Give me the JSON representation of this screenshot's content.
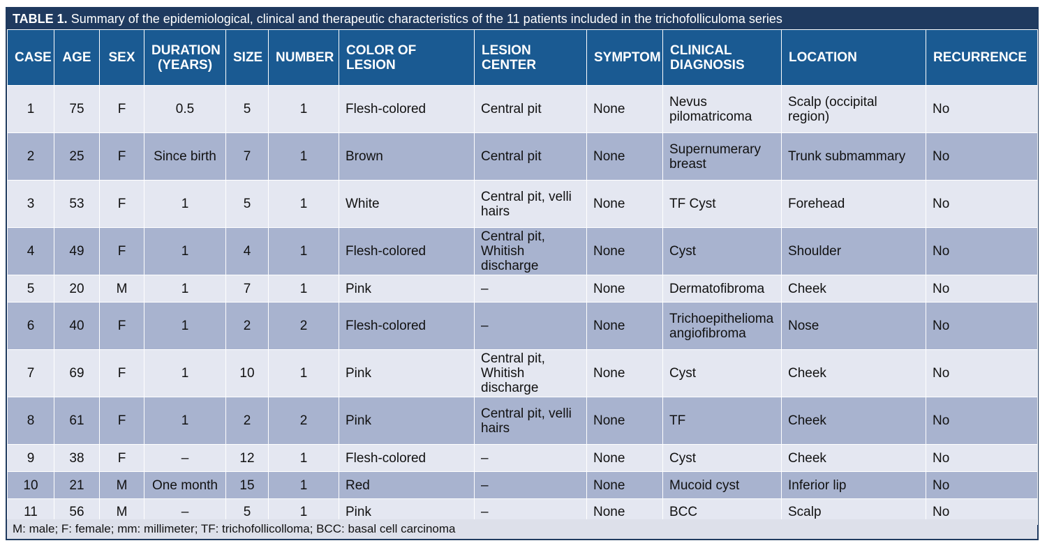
{
  "table": {
    "label": "TABLE 1.",
    "caption": "Summary of the epidemiological, clinical and therapeutic characteristics of the 11 patients included in the trichofolliculoma series",
    "headers": [
      "CASE",
      "AGE",
      "SEX",
      "DURATION (YEARS)",
      "SIZE",
      "NUMBER",
      "COLOR OF LESION",
      "LESION CENTER",
      "SYMPTOM",
      "CLINICAL DIAGNOSIS",
      "LOCATION",
      "RECURRENCE"
    ],
    "rows": [
      [
        "1",
        "75",
        "F",
        "0.5",
        "5",
        "1",
        "Flesh-colored",
        "Central pit",
        "None",
        "Nevus pilomatricoma",
        "Scalp (occipital region)",
        "No"
      ],
      [
        "2",
        "25",
        "F",
        "Since birth",
        "7",
        "1",
        "Brown",
        "Central pit",
        "None",
        "Supernumerary breast",
        "Trunk submammary",
        "No"
      ],
      [
        "3",
        "53",
        "F",
        "1",
        "5",
        "1",
        "White",
        "Central pit, velli hairs",
        "None",
        "TF Cyst",
        "Forehead",
        "No"
      ],
      [
        "4",
        "49",
        "F",
        "1",
        "4",
        "1",
        "Flesh-colored",
        "Central pit, Whitish discharge",
        "None",
        "Cyst",
        "Shoulder",
        "No"
      ],
      [
        "5",
        "20",
        "M",
        "1",
        "7",
        "1",
        "Pink",
        "–",
        "None",
        "Dermatofibroma",
        "Cheek",
        "No"
      ],
      [
        "6",
        "40",
        "F",
        "1",
        "2",
        "2",
        "Flesh-colored",
        "–",
        "None",
        "Trichoepithelioma angiofibroma",
        "Nose",
        "No"
      ],
      [
        "7",
        "69",
        "F",
        "1",
        "10",
        "1",
        "Pink",
        "Central pit, Whitish discharge",
        "None",
        "Cyst",
        "Cheek",
        "No"
      ],
      [
        "8",
        "61",
        "F",
        "1",
        "2",
        "2",
        "Pink",
        "Central pit, velli hairs",
        "None",
        "TF",
        "Cheek",
        "No"
      ],
      [
        "9",
        "38",
        "F",
        "–",
        "12",
        "1",
        "Flesh-colored",
        "–",
        "None",
        "Cyst",
        "Cheek",
        "No"
      ],
      [
        "10",
        "21",
        "M",
        "One month",
        "15",
        "1",
        "Red",
        "–",
        "None",
        "Mucoid cyst",
        "Inferior lip",
        "No"
      ],
      [
        "11",
        "56",
        "M",
        "–",
        "5",
        "1",
        "Pink",
        "–",
        "None",
        "BCC",
        "Scalp",
        "No"
      ]
    ],
    "footnote": "M: male; F: female; mm: millimeter; TF: trichofollicolloma; BCC: basal cell carcinoma"
  },
  "colors": {
    "title_bg": "#1f3a5f",
    "header_bg": "#1a5a92",
    "row_light": "#e4e7f1",
    "row_dark": "#a8b3cf"
  }
}
